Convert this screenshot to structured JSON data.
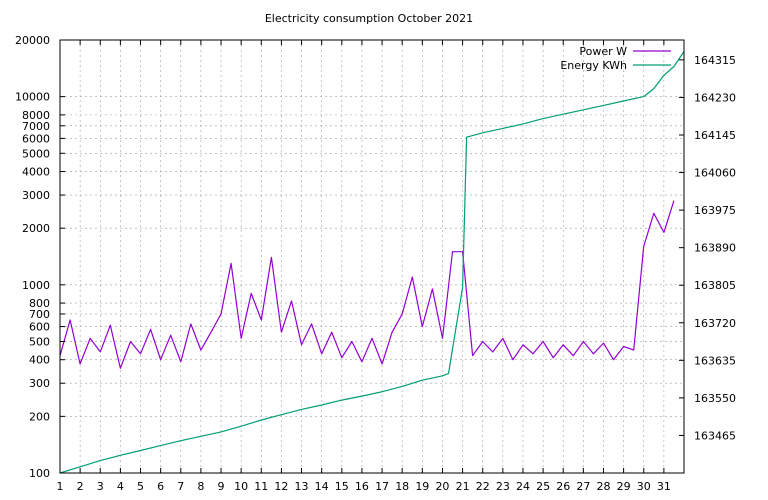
{
  "chart_data": {
    "type": "line",
    "title": "Electricity consumption October 2021",
    "grid": true,
    "legend_position": "top-right",
    "x_axis": {
      "range": [
        1,
        32
      ],
      "tick_values": [
        1,
        2,
        3,
        4,
        5,
        6,
        7,
        8,
        9,
        10,
        11,
        12,
        13,
        14,
        15,
        16,
        17,
        18,
        19,
        20,
        21,
        22,
        23,
        24,
        25,
        26,
        27,
        28,
        29,
        30,
        31
      ],
      "tick_labels": [
        "1",
        "2",
        "3",
        "4",
        "5",
        "6",
        "7",
        "8",
        "9",
        "10",
        "11",
        "12",
        "13",
        "14",
        "15",
        "16",
        "17",
        "18",
        "19",
        "20",
        "21",
        "22",
        "23",
        "24",
        "25",
        "26",
        "27",
        "28",
        "29",
        "30",
        "31"
      ]
    },
    "y_axis_left": {
      "scale": "log",
      "range": [
        100,
        20000
      ],
      "tick_values": [
        100,
        200,
        300,
        400,
        500,
        600,
        700,
        800,
        1000,
        2000,
        3000,
        4000,
        5000,
        6000,
        7000,
        8000,
        10000,
        20000
      ],
      "tick_labels": [
        "100",
        "200",
        "300",
        "400",
        "500",
        "600",
        "700",
        "800",
        "1000",
        "2000",
        "3000",
        "4000",
        "5000",
        "6000",
        "7000",
        "8000",
        "10000",
        "20000"
      ]
    },
    "y_axis_right": {
      "scale": "linear",
      "range": [
        163380,
        164360
      ],
      "tick_values": [
        163465,
        163550,
        163635,
        163720,
        163805,
        163890,
        163975,
        164060,
        164145,
        164230,
        164315
      ],
      "tick_labels": [
        "163465",
        "163550",
        "163635",
        "163720",
        "163805",
        "163890",
        "163975",
        "164060",
        "164145",
        "164230",
        "164315"
      ]
    },
    "series": [
      {
        "name": "Power W",
        "axis": "left",
        "color": "#9400d3",
        "x": [
          1.0,
          1.5,
          2.0,
          2.5,
          3.0,
          3.5,
          4.0,
          4.5,
          5.0,
          5.5,
          6.0,
          6.5,
          7.0,
          7.5,
          8.0,
          8.5,
          9.0,
          9.5,
          10.0,
          10.5,
          11.0,
          11.5,
          12.0,
          12.5,
          13.0,
          13.5,
          14.0,
          14.5,
          15.0,
          15.5,
          16.0,
          16.5,
          17.0,
          17.5,
          18.0,
          18.5,
          19.0,
          19.5,
          20.0,
          20.5,
          21.0,
          21.5,
          22.0,
          22.5,
          23.0,
          23.5,
          24.0,
          24.5,
          25.0,
          25.5,
          26.0,
          26.5,
          27.0,
          27.5,
          28.0,
          28.5,
          29.0,
          29.5,
          30.0,
          30.5,
          31.0,
          31.5
        ],
        "y": [
          420,
          650,
          380,
          520,
          440,
          610,
          360,
          500,
          430,
          580,
          400,
          540,
          390,
          620,
          450,
          560,
          700,
          1300,
          520,
          900,
          650,
          1400,
          560,
          820,
          480,
          620,
          430,
          560,
          410,
          500,
          390,
          520,
          380,
          560,
          700,
          1100,
          600,
          950,
          520,
          1500,
          1500,
          420,
          500,
          440,
          520,
          400,
          480,
          430,
          500,
          410,
          480,
          420,
          500,
          430,
          490,
          400,
          470,
          450,
          1600,
          2400,
          1900,
          2800
        ]
      },
      {
        "name": "Energy KWh",
        "axis": "right",
        "color": "#009e73",
        "x": [
          1.0,
          2.0,
          3.0,
          4.0,
          5.0,
          6.0,
          7.0,
          8.0,
          9.0,
          10.0,
          11.0,
          12.0,
          13.0,
          14.0,
          15.0,
          16.0,
          17.0,
          18.0,
          19.0,
          20.0,
          20.3,
          21.0,
          21.2,
          22.0,
          23.0,
          24.0,
          25.0,
          26.0,
          27.0,
          28.0,
          29.0,
          30.0,
          30.5,
          31.0,
          31.5,
          32.0
        ],
        "y": [
          163380,
          163394,
          163408,
          163420,
          163431,
          163442,
          163453,
          163463,
          163473,
          163486,
          163500,
          163512,
          163524,
          163534,
          163545,
          163554,
          163564,
          163576,
          163590,
          163600,
          163605,
          163800,
          164140,
          164150,
          164160,
          164170,
          164182,
          164192,
          164202,
          164212,
          164222,
          164232,
          164250,
          164280,
          164300,
          164334
        ]
      }
    ]
  }
}
